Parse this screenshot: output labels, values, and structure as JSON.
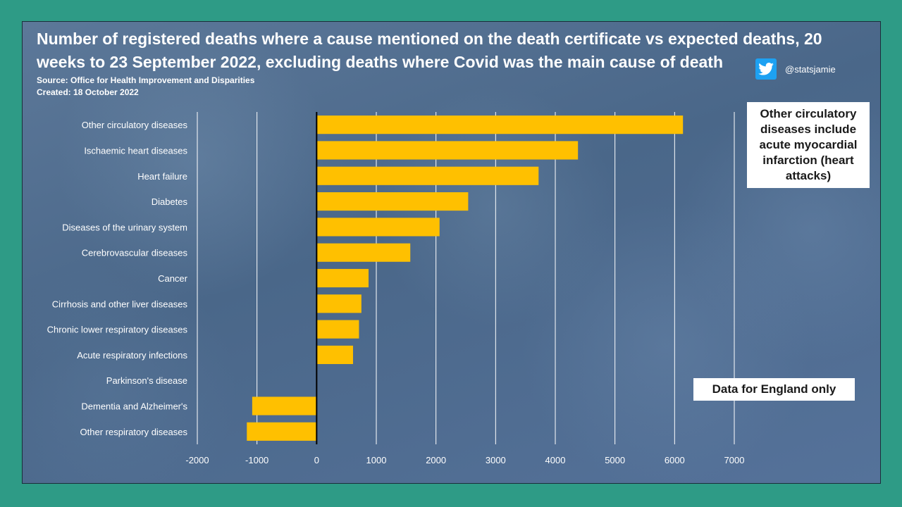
{
  "header": {
    "title": "Number of registered deaths where a cause mentioned on the death certificate vs expected deaths, 20 weeks to 23 September 2022, excluding deaths where Covid was the main cause of death",
    "source": "Source: Office for Health Improvement and Disparities",
    "created": "Created: 18 October 2022"
  },
  "social": {
    "icon": "twitter-bird-icon",
    "handle": "@statsjamie"
  },
  "annotations": {
    "circulatory_note": "Other circulatory diseases include acute myocardial infarction (heart attacks)",
    "england_note": "Data for England only"
  },
  "colors": {
    "bar": "#ffc000",
    "background": "#2e9b86",
    "grid": "#ffffff",
    "zero_line": "#000000"
  },
  "chart_data": {
    "type": "bar",
    "orientation": "horizontal",
    "title": "Number of registered deaths where a cause mentioned on the death certificate vs expected deaths, 20 weeks to 23 September 2022, excluding deaths where Covid was the main cause of death",
    "xlabel": "",
    "ylabel": "",
    "categories": [
      "Other circulatory diseases",
      "Ischaemic heart diseases",
      "Heart failure",
      "Diabetes",
      "Diseases of the urinary system",
      "Cerebrovascular diseases",
      "Cancer",
      "Cirrhosis and other liver diseases",
      "Chronic lower respiratory diseases",
      "Acute respiratory infections",
      "Parkinson's disease",
      "Dementia and Alzheimer's",
      "Other respiratory diseases"
    ],
    "values": [
      6140,
      4380,
      3720,
      2540,
      2060,
      1570,
      870,
      750,
      710,
      610,
      0,
      -1080,
      -1170
    ],
    "xlim": [
      -2000,
      7000
    ],
    "xticks": [
      -2000,
      -1000,
      0,
      1000,
      2000,
      3000,
      4000,
      5000,
      6000,
      7000
    ],
    "grid": true
  }
}
